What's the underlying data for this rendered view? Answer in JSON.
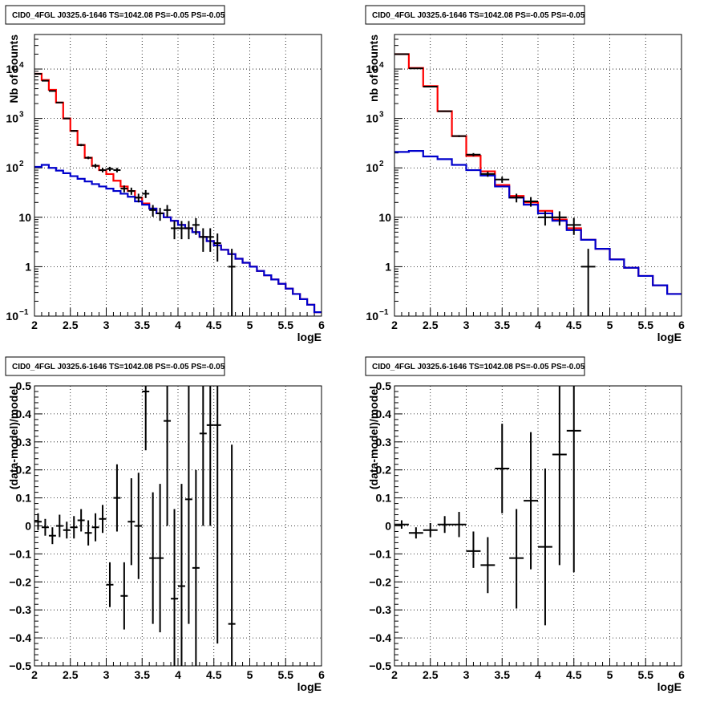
{
  "chart_data": [
    {
      "type": "line",
      "title": "CID0_4FGL J0325.6-1646 TS=1042.08 PS=-0.05 PS=-0.05",
      "xlabel": "logE",
      "ylabel": "Nb of counts",
      "xlim": [
        2,
        6
      ],
      "ylim": [
        0.1,
        50000
      ],
      "yscale": "log",
      "grid": true,
      "xticks": [
        "2",
        "2.5",
        "3",
        "3.5",
        "4",
        "4.5",
        "5",
        "5.5",
        "6"
      ],
      "yticks": [
        {
          "v": 0.1,
          "base": "10",
          "exp": "−1"
        },
        {
          "v": 1,
          "label": "1"
        },
        {
          "v": 10,
          "label": "10"
        },
        {
          "v": 100,
          "base": "10",
          "exp": "2"
        },
        {
          "v": 1000,
          "base": "10",
          "exp": "3"
        },
        {
          "v": 10000,
          "base": "10",
          "exp": "4"
        }
      ],
      "bin_edges": [
        2,
        2.1,
        2.2,
        2.3,
        2.4,
        2.5,
        2.6,
        2.7,
        2.8,
        2.9,
        3.0,
        3.1,
        3.2,
        3.3,
        3.4,
        3.5,
        3.6,
        3.7,
        3.8,
        3.9,
        4.0,
        4.1,
        4.2,
        4.3,
        4.4,
        4.5,
        4.6,
        4.7,
        4.8,
        4.9,
        5.0,
        5.1,
        5.2,
        5.3,
        5.4,
        5.5,
        5.6,
        5.7,
        5.8,
        5.9,
        6.0
      ],
      "series": [
        {
          "color": "#ff0000",
          "kind": "step",
          "values": [
            8000,
            6000,
            3800,
            2100,
            1000,
            560,
            290,
            160,
            110,
            90,
            75,
            55,
            42,
            34,
            25,
            19,
            15,
            12,
            10,
            8.5,
            7,
            6,
            5,
            4,
            3.3,
            2.7,
            2.2,
            1.8,
            1.45,
            1.2,
            1.0,
            0.82,
            0.67,
            0.55,
            0.45,
            0.36,
            0.28,
            0.22,
            0.17,
            0.12
          ]
        },
        {
          "color": "#0000cc",
          "kind": "step",
          "values": [
            105,
            115,
            100,
            88,
            78,
            68,
            60,
            53,
            47,
            42,
            38,
            34,
            30,
            26,
            21,
            18,
            15,
            12,
            10,
            8.5,
            7,
            6,
            5,
            4,
            3.3,
            2.7,
            2.2,
            1.8,
            1.45,
            1.2,
            1.0,
            0.82,
            0.67,
            0.55,
            0.45,
            0.36,
            0.28,
            0.22,
            0.17,
            0.12
          ]
        },
        {
          "color": "#000000",
          "kind": "errorbar",
          "xerr": 0.05,
          "x": [
            2.05,
            2.15,
            2.25,
            2.35,
            2.45,
            2.55,
            2.65,
            2.75,
            2.85,
            2.95,
            3.05,
            3.15,
            3.25,
            3.35,
            3.45,
            3.55,
            3.65,
            3.75,
            3.85,
            3.95,
            4.05,
            4.15,
            4.25,
            4.35,
            4.45,
            4.55,
            4.75
          ],
          "y": [
            8000,
            5800,
            3600,
            2100,
            1000,
            560,
            290,
            160,
            110,
            90,
            95,
            90,
            38,
            34,
            25,
            30,
            14,
            12,
            14,
            6,
            6,
            6,
            7,
            4,
            4,
            3,
            1
          ],
          "ylo": [
            7900,
            5700,
            3500,
            2050,
            970,
            540,
            275,
            150,
            100,
            81,
            86,
            81,
            32,
            28.5,
            20,
            24.5,
            10.3,
            8.5,
            10.3,
            3.6,
            3.6,
            3.6,
            4.4,
            2.0,
            2.0,
            1.27,
            0.1
          ],
          "yhi": [
            8090,
            5880,
            3660,
            2150,
            1030,
            580,
            305,
            170,
            120,
            100,
            105,
            100,
            44,
            39.8,
            30,
            35.5,
            17.7,
            15.5,
            17.7,
            8.4,
            8.4,
            8.4,
            9.6,
            6.0,
            6.0,
            4.7,
            2.3
          ]
        }
      ]
    },
    {
      "type": "line",
      "title": "CID0_4FGL J0325.6-1646 TS=1042.08 PS=-0.05 PS=-0.05",
      "xlabel": "logE",
      "ylabel": "nb of counts",
      "xlim": [
        2,
        6
      ],
      "ylim": [
        0.1,
        50000
      ],
      "yscale": "log",
      "grid": true,
      "xticks": [
        "2",
        "2.5",
        "3",
        "3.5",
        "4",
        "4.5",
        "5",
        "5.5",
        "6"
      ],
      "yticks": [
        {
          "v": 0.1,
          "base": "10",
          "exp": "−1"
        },
        {
          "v": 1,
          "label": "1"
        },
        {
          "v": 10,
          "label": "10"
        },
        {
          "v": 100,
          "base": "10",
          "exp": "2"
        },
        {
          "v": 1000,
          "base": "10",
          "exp": "3"
        },
        {
          "v": 10000,
          "base": "10",
          "exp": "4"
        }
      ],
      "bin_edges": [
        2,
        2.2,
        2.4,
        2.6,
        2.8,
        3.0,
        3.2,
        3.4,
        3.6,
        3.8,
        4.0,
        4.2,
        4.4,
        4.6,
        4.8,
        5.0,
        5.2,
        5.4,
        5.6,
        5.8,
        6.0
      ],
      "series": [
        {
          "color": "#ff0000",
          "kind": "step",
          "values": [
            20000,
            10500,
            4500,
            1400,
            440,
            175,
            85,
            45,
            27,
            20,
            13.5,
            9,
            6,
            3.5,
            2.3,
            1.4,
            0.95,
            0.65,
            0.42,
            0.28
          ]
        },
        {
          "color": "#0000cc",
          "kind": "step",
          "values": [
            210,
            220,
            170,
            150,
            115,
            90,
            70,
            42,
            25,
            18,
            12,
            8.5,
            5.5,
            3.5,
            2.3,
            1.4,
            0.95,
            0.65,
            0.42,
            0.28
          ]
        },
        {
          "color": "#000000",
          "kind": "errorbar",
          "xerr": 0.1,
          "x": [
            2.1,
            2.3,
            2.5,
            2.7,
            2.9,
            3.1,
            3.3,
            3.5,
            3.7,
            3.9,
            4.1,
            4.3,
            4.5,
            4.7
          ],
          "y": [
            20000,
            10300,
            4400,
            1400,
            440,
            185,
            75,
            58,
            25,
            21,
            10,
            10,
            7,
            1
          ],
          "ylo": [
            19850,
            10200,
            4330,
            1360,
            420,
            171,
            66,
            50,
            20,
            16.4,
            6.8,
            6.8,
            4.4,
            0.1
          ],
          "yhi": [
            20150,
            10400,
            4470,
            1440,
            460,
            199,
            84,
            66,
            30,
            25.6,
            13.2,
            13.2,
            9.6,
            2.3
          ]
        }
      ]
    },
    {
      "type": "scatter",
      "title": "CID0_4FGL J0325.6-1646 TS=1042.08 PS=-0.05 PS=-0.05",
      "xlabel": "logE",
      "ylabel": "(data-model)/model",
      "xlim": [
        2,
        6
      ],
      "ylim": [
        -0.5,
        0.5
      ],
      "yscale": "linear",
      "grid": true,
      "xticks": [
        "2",
        "2.5",
        "3",
        "3.5",
        "4",
        "4.5",
        "5",
        "5.5",
        "6"
      ],
      "yticks": [
        {
          "v": -0.5,
          "label": "−0.5"
        },
        {
          "v": -0.4,
          "label": "−0.4"
        },
        {
          "v": -0.3,
          "label": "−0.3"
        },
        {
          "v": -0.2,
          "label": "−0.2"
        },
        {
          "v": -0.1,
          "label": "−0.1"
        },
        {
          "v": 0,
          "label": "0"
        },
        {
          "v": 0.1,
          "label": "0.1"
        },
        {
          "v": 0.2,
          "label": "0.2"
        },
        {
          "v": 0.3,
          "label": "0.3"
        },
        {
          "v": 0.4,
          "label": "0.4"
        },
        {
          "v": 0.5,
          "label": "0.5"
        }
      ],
      "series": [
        {
          "color": "#000000",
          "kind": "errorbar",
          "xerr": 0.05,
          "x": [
            2.05,
            2.15,
            2.25,
            2.35,
            2.45,
            2.55,
            2.65,
            2.75,
            2.85,
            2.95,
            3.05,
            3.15,
            3.25,
            3.35,
            3.45,
            3.55,
            3.65,
            3.75,
            3.85,
            3.95,
            4.05,
            4.15,
            4.25,
            4.35,
            4.45,
            4.55,
            4.75
          ],
          "y": [
            0.015,
            -0.005,
            -0.035,
            0.0,
            -0.015,
            -0.005,
            0.02,
            -0.025,
            -0.005,
            0.025,
            -0.21,
            0.1,
            -0.25,
            0.015,
            0.0,
            0.48,
            -0.115,
            -0.115,
            0.375,
            -0.26,
            -0.215,
            0.095,
            -0.15,
            0.33,
            0.36,
            0.36,
            -0.35
          ],
          "ylo": [
            -0.015,
            -0.035,
            -0.065,
            -0.04,
            -0.045,
            -0.045,
            -0.02,
            -0.07,
            -0.055,
            -0.025,
            -0.29,
            -0.02,
            -0.37,
            -0.14,
            -0.19,
            0.27,
            -0.35,
            -0.38,
            0.0,
            -0.58,
            -0.58,
            -0.35,
            -0.5,
            0.0,
            0.0,
            -0.42,
            -0.5
          ],
          "yhi": [
            0.045,
            0.025,
            -0.005,
            0.04,
            0.015,
            0.035,
            0.06,
            0.02,
            0.045,
            0.075,
            -0.13,
            0.22,
            -0.13,
            0.17,
            0.19,
            0.69,
            0.12,
            0.15,
            0.75,
            0.06,
            0.15,
            0.54,
            0.2,
            0.66,
            0.72,
            1.14,
            0.29
          ]
        }
      ]
    },
    {
      "type": "scatter",
      "title": "CID0_4FGL J0325.6-1646 TS=1042.08 PS=-0.05 PS=-0.05",
      "xlabel": "logE",
      "ylabel": "(data-model)/model",
      "xlim": [
        2,
        6
      ],
      "ylim": [
        -0.5,
        0.5
      ],
      "yscale": "linear",
      "grid": true,
      "xticks": [
        "2",
        "2.5",
        "3",
        "3.5",
        "4",
        "4.5",
        "5",
        "5.5",
        "6"
      ],
      "yticks": [
        {
          "v": -0.5,
          "label": "−0.5"
        },
        {
          "v": -0.4,
          "label": "−0.4"
        },
        {
          "v": -0.3,
          "label": "−0.3"
        },
        {
          "v": -0.2,
          "label": "−0.2"
        },
        {
          "v": -0.1,
          "label": "−0.1"
        },
        {
          "v": 0,
          "label": "0"
        },
        {
          "v": 0.1,
          "label": "0.1"
        },
        {
          "v": 0.2,
          "label": "0.2"
        },
        {
          "v": 0.3,
          "label": "0.3"
        },
        {
          "v": 0.4,
          "label": "0.4"
        },
        {
          "v": 0.5,
          "label": "0.5"
        }
      ],
      "series": [
        {
          "color": "#000000",
          "kind": "errorbar",
          "xerr": 0.1,
          "x": [
            2.1,
            2.3,
            2.5,
            2.7,
            2.9,
            3.1,
            3.3,
            3.5,
            3.7,
            3.9,
            4.1,
            4.3,
            4.5
          ],
          "y": [
            0.005,
            -0.025,
            -0.015,
            0.005,
            0.005,
            -0.09,
            -0.14,
            0.205,
            -0.115,
            0.09,
            -0.075,
            0.255,
            0.34
          ],
          "ylo": [
            -0.01,
            -0.045,
            -0.04,
            -0.025,
            -0.04,
            -0.15,
            -0.24,
            0.045,
            -0.295,
            -0.155,
            -0.355,
            -0.14,
            -0.165
          ],
          "yhi": [
            0.02,
            -0.005,
            0.01,
            0.035,
            0.05,
            -0.02,
            -0.04,
            0.365,
            0.06,
            0.335,
            0.205,
            0.65,
            0.845
          ]
        }
      ]
    }
  ]
}
